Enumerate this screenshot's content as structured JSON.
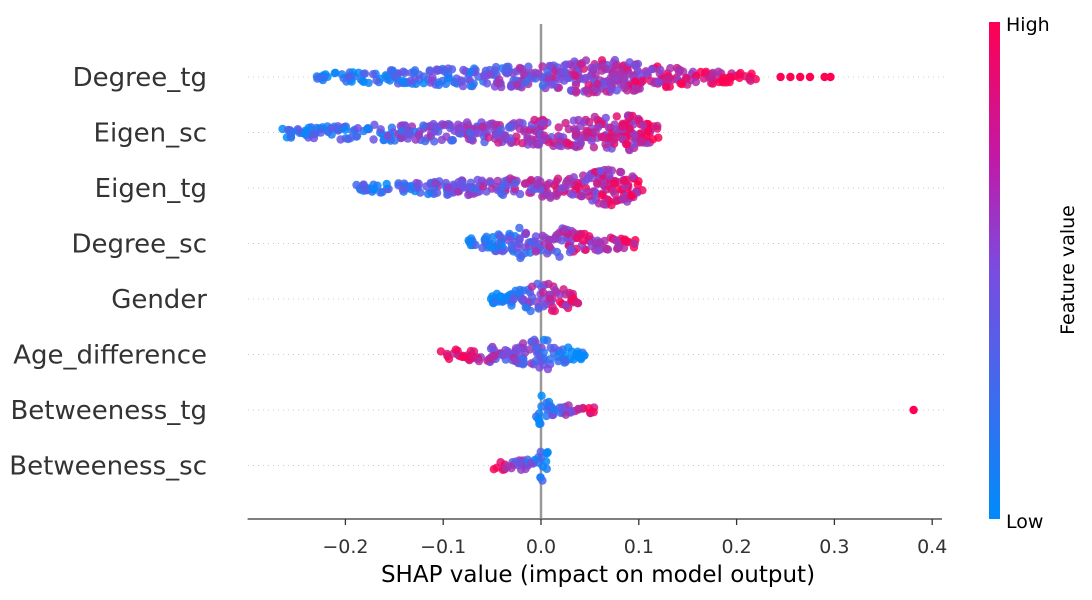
{
  "chart_data": {
    "type": "scatter",
    "subtype": "shap-beeswarm",
    "xlabel": "SHAP value (impact on model output)",
    "xlim": [
      -0.3,
      0.41
    ],
    "xticks": [
      -0.2,
      -0.1,
      0.0,
      0.1,
      0.2,
      0.3,
      0.4
    ],
    "xtick_labels": [
      "−0.2",
      "−0.1",
      "0.0",
      "0.1",
      "0.2",
      "0.3",
      "0.4"
    ],
    "colorbar": {
      "label": "Feature value",
      "high_label": "High",
      "low_label": "Low",
      "high_color": "#ff0052",
      "low_color": "#008bfb"
    },
    "features": [
      {
        "name": "Degree_tg",
        "min": -0.23,
        "max": 0.22,
        "color_trend": "high-positive",
        "density": [
          [
            -0.23,
            0.3
          ],
          [
            -0.15,
            0.6
          ],
          [
            -0.08,
            0.8
          ],
          [
            0.0,
            0.9
          ],
          [
            0.03,
            1.3
          ],
          [
            0.065,
            1.6
          ],
          [
            0.1,
            1.1
          ],
          [
            0.15,
            0.7
          ],
          [
            0.22,
            0.3
          ]
        ],
        "outliers": [
          0.245,
          0.255,
          0.265,
          0.275,
          0.29,
          0.296
        ]
      },
      {
        "name": "Eigen_sc",
        "min": -0.265,
        "max": 0.12,
        "color_trend": "high-positive-mixed",
        "density": [
          [
            -0.265,
            0.4
          ],
          [
            -0.2,
            0.6
          ],
          [
            -0.1,
            0.8
          ],
          [
            -0.03,
            0.9
          ],
          [
            0.0,
            1.1
          ],
          [
            0.05,
            1.3
          ],
          [
            0.09,
            1.5
          ],
          [
            0.12,
            0.6
          ]
        ],
        "outliers": []
      },
      {
        "name": "Eigen_tg",
        "min": -0.19,
        "max": 0.105,
        "color_trend": "high-positive-mixed",
        "density": [
          [
            -0.19,
            0.3
          ],
          [
            -0.12,
            0.5
          ],
          [
            -0.04,
            0.8
          ],
          [
            0.0,
            0.8
          ],
          [
            0.04,
            1.0
          ],
          [
            0.065,
            1.6
          ],
          [
            0.09,
            1.2
          ],
          [
            0.105,
            0.5
          ]
        ],
        "outliers": []
      },
      {
        "name": "Degree_sc",
        "min": -0.075,
        "max": 0.098,
        "color_trend": "high-positive",
        "density": [
          [
            -0.075,
            0.4
          ],
          [
            -0.04,
            0.8
          ],
          [
            -0.02,
            1.4
          ],
          [
            0.0,
            0.9
          ],
          [
            0.02,
            1.3
          ],
          [
            0.05,
            0.7
          ],
          [
            0.098,
            0.3
          ]
        ],
        "outliers": []
      },
      {
        "name": "Gender",
        "min": -0.052,
        "max": 0.04,
        "color_trend": "high-positive",
        "density": [
          [
            -0.052,
            0.4
          ],
          [
            -0.02,
            0.8
          ],
          [
            -0.005,
            1.3
          ],
          [
            0.0,
            1.4
          ],
          [
            0.02,
            1.0
          ],
          [
            0.04,
            0.4
          ]
        ],
        "outliers": []
      },
      {
        "name": "Age_difference",
        "min": -0.105,
        "max": 0.046,
        "color_trend": "high-negative",
        "density": [
          [
            -0.105,
            0.3
          ],
          [
            -0.06,
            0.6
          ],
          [
            -0.02,
            0.9
          ],
          [
            0.0,
            1.4
          ],
          [
            0.02,
            0.9
          ],
          [
            0.046,
            0.3
          ]
        ],
        "outliers": []
      },
      {
        "name": "Betweeness_tg",
        "min": -0.005,
        "max": 0.055,
        "color_trend": "high-positive",
        "density": [
          [
            -0.005,
            1.7
          ],
          [
            0.0,
            1.5
          ],
          [
            0.01,
            0.6
          ],
          [
            0.03,
            0.4
          ],
          [
            0.055,
            0.3
          ]
        ],
        "outliers": [
          0.381
        ]
      },
      {
        "name": "Betweeness_sc",
        "min": -0.05,
        "max": 0.007,
        "color_trend": "high-negative",
        "density": [
          [
            -0.05,
            0.3
          ],
          [
            -0.02,
            0.5
          ],
          [
            -0.003,
            0.7
          ],
          [
            0.0,
            1.3
          ],
          [
            0.007,
            1.4
          ]
        ],
        "outliers": []
      }
    ]
  }
}
